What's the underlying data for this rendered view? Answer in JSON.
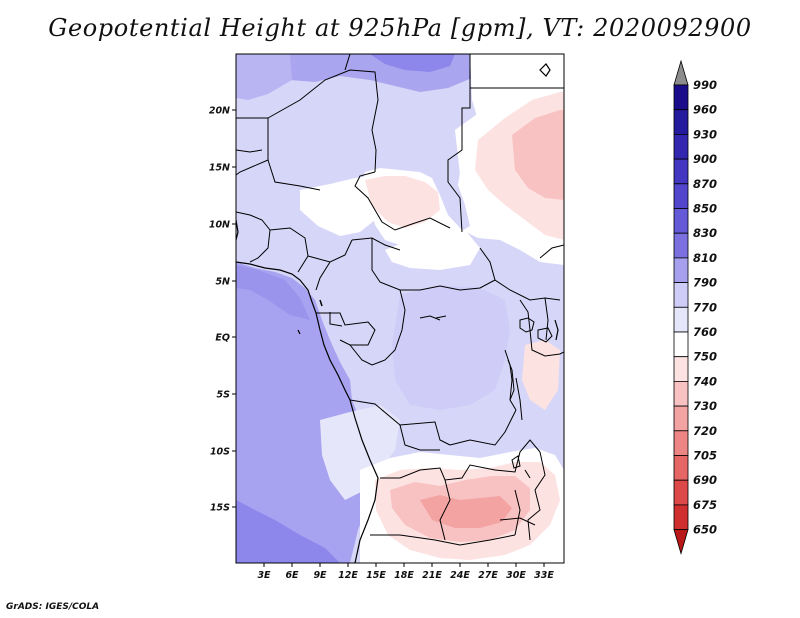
{
  "title": "Geopotential Height at 925hPa [gpm], VT: 2020092900",
  "credit": "GrADS: IGES/COLA",
  "lat_labels": [
    "20N",
    "15N",
    "10N",
    "5N",
    "EQ",
    "5S",
    "10S",
    "15S"
  ],
  "lon_labels": [
    "3E",
    "6E",
    "9E",
    "12E",
    "15E",
    "18E",
    "21E",
    "24E",
    "27E",
    "30E",
    "33E"
  ],
  "colorbar": {
    "levels": [
      "990",
      "960",
      "930",
      "900",
      "870",
      "850",
      "830",
      "810",
      "790",
      "770",
      "760",
      "750",
      "740",
      "730",
      "720",
      "705",
      "690",
      "675",
      "650"
    ],
    "colors": [
      "#8c8c8c",
      "#1a0d8c",
      "#241a9e",
      "#3327b0",
      "#4336c0",
      "#5246cc",
      "#6459d6",
      "#7a70e0",
      "#a6a1ee",
      "#cfcdf8",
      "#e6e6fb",
      "#ffffff",
      "#fde2e2",
      "#f9c2c2",
      "#f4a3a3",
      "#ee8585",
      "#e66666",
      "#dd4848",
      "#cf2f2f",
      "#b81818"
    ]
  },
  "colors": {
    "land_base": "#d6d6f8",
    "ocean": "#a7a3f0",
    "deep_ocean": "#8d86eb",
    "high": "#ffffff",
    "warm": "#fbd4d4",
    "warmer": "#f6b2b2",
    "border": "#000000"
  }
}
